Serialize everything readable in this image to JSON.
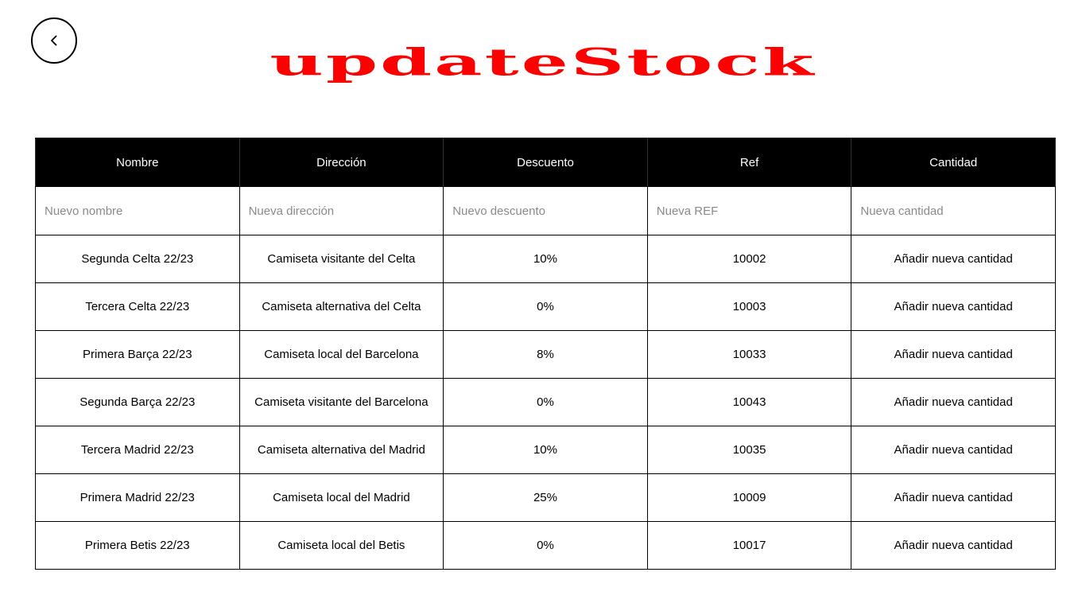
{
  "page": {
    "title": "updateStock",
    "title_color": "#ff0000"
  },
  "back_button": {
    "icon": "chevron-left-icon"
  },
  "table": {
    "headers": {
      "nombre": "Nombre",
      "direccion": "Dirección",
      "descuento": "Descuento",
      "ref": "Ref",
      "cantidad": "Cantidad"
    },
    "header_bg": "#000000",
    "inputs": {
      "nombre_placeholder": "Nuevo nombre",
      "direccion_placeholder": "Nueva dirección",
      "descuento_placeholder": "Nuevo descuento",
      "ref_placeholder": "Nueva REF",
      "cantidad_placeholder": "Nueva cantidad"
    },
    "rows": [
      {
        "nombre": "Segunda Celta 22/23",
        "direccion": "Camiseta visitante del Celta",
        "descuento": "10%",
        "ref": "10002",
        "cantidad": "Añadir nueva cantidad"
      },
      {
        "nombre": "Tercera Celta 22/23",
        "direccion": "Camiseta alternativa del Celta",
        "descuento": "0%",
        "ref": "10003",
        "cantidad": "Añadir nueva cantidad"
      },
      {
        "nombre": "Primera Barça 22/23",
        "direccion": "Camiseta local del Barcelona",
        "descuento": "8%",
        "ref": "10033",
        "cantidad": "Añadir nueva cantidad"
      },
      {
        "nombre": "Segunda Barça 22/23",
        "direccion": "Camiseta visitante del Barcelona",
        "descuento": "0%",
        "ref": "10043",
        "cantidad": "Añadir nueva cantidad"
      },
      {
        "nombre": "Tercera Madrid 22/23",
        "direccion": "Camiseta alternativa del Madrid",
        "descuento": "10%",
        "ref": "10035",
        "cantidad": "Añadir nueva cantidad"
      },
      {
        "nombre": "Primera Madrid 22/23",
        "direccion": "Camiseta local del Madrid",
        "descuento": "25%",
        "ref": "10009",
        "cantidad": "Añadir nueva cantidad"
      },
      {
        "nombre": "Primera Betis 22/23",
        "direccion": "Camiseta local del Betis",
        "descuento": "0%",
        "ref": "10017",
        "cantidad": "Añadir nueva cantidad"
      }
    ]
  }
}
